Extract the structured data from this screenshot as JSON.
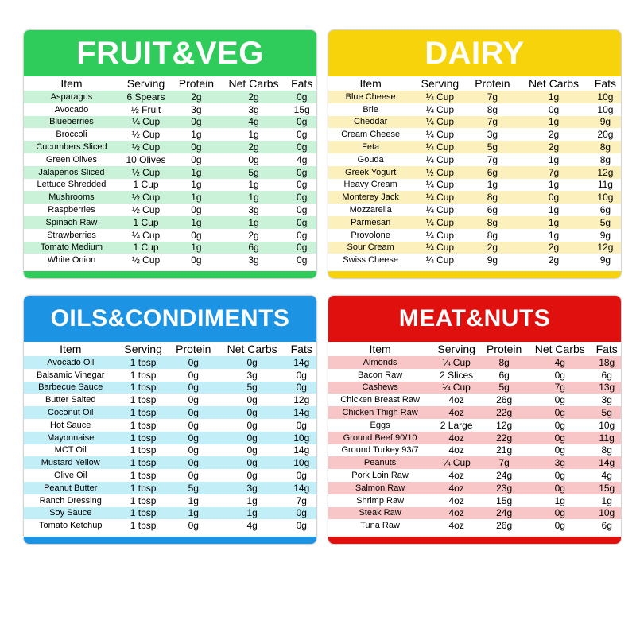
{
  "cards": [
    {
      "title": "FRUIT&VEG",
      "columns": [
        "Item",
        "Serving",
        "Protein",
        "Net Carbs",
        "Fats"
      ],
      "rows": [
        [
          "Asparagus",
          "6 Spears",
          "2g",
          "2g",
          "0g"
        ],
        [
          "Avocado",
          "½ Fruit",
          "3g",
          "3g",
          "15g"
        ],
        [
          "Blueberries",
          "¼ Cup",
          "0g",
          "4g",
          "0g"
        ],
        [
          "Broccoli",
          "½ Cup",
          "1g",
          "1g",
          "0g"
        ],
        [
          "Cucumbers Sliced",
          "½ Cup",
          "0g",
          "2g",
          "0g"
        ],
        [
          "Green Olives",
          "10 Olives",
          "0g",
          "0g",
          "4g"
        ],
        [
          "Jalapenos Sliced",
          "½ Cup",
          "1g",
          "5g",
          "0g"
        ],
        [
          "Lettuce Shredded",
          "1 Cup",
          "1g",
          "1g",
          "0g"
        ],
        [
          "Mushrooms",
          "½ Cup",
          "1g",
          "1g",
          "0g"
        ],
        [
          "Raspberries",
          "½ Cup",
          "0g",
          "3g",
          "0g"
        ],
        [
          "Spinach Raw",
          "1 Cup",
          "1g",
          "1g",
          "0g"
        ],
        [
          "Strawberries",
          "¼ Cup",
          "0g",
          "2g",
          "0g"
        ],
        [
          "Tomato Medium",
          "1 Cup",
          "1g",
          "6g",
          "0g"
        ],
        [
          "White Onion",
          "½ Cup",
          "0g",
          "3g",
          "0g"
        ]
      ]
    },
    {
      "title": "DAIRY",
      "columns": [
        "Item",
        "Serving",
        "Protein",
        "Net Carbs",
        "Fats"
      ],
      "rows": [
        [
          "Blue Cheese",
          "¼ Cup",
          "7g",
          "1g",
          "10g"
        ],
        [
          "Brie",
          "¼ Cup",
          "8g",
          "0g",
          "10g"
        ],
        [
          "Cheddar",
          "¼ Cup",
          "7g",
          "1g",
          "9g"
        ],
        [
          "Cream Cheese",
          "¼ Cup",
          "3g",
          "2g",
          "20g"
        ],
        [
          "Feta",
          "¼ Cup",
          "5g",
          "2g",
          "8g"
        ],
        [
          "Gouda",
          "¼ Cup",
          "7g",
          "1g",
          "8g"
        ],
        [
          "Greek Yogurt",
          "½ Cup",
          "6g",
          "7g",
          "12g"
        ],
        [
          "Heavy Cream",
          "¼ Cup",
          "1g",
          "1g",
          "11g"
        ],
        [
          "Monterey Jack",
          "¼ Cup",
          "8g",
          "0g",
          "10g"
        ],
        [
          "Mozzarella",
          "¼ Cup",
          "6g",
          "1g",
          "6g"
        ],
        [
          "Parmesan",
          "¼ Cup",
          "8g",
          "1g",
          "5g"
        ],
        [
          "Provolone",
          "¼ Cup",
          "8g",
          "1g",
          "9g"
        ],
        [
          "Sour Cream",
          "¼ Cup",
          "2g",
          "2g",
          "12g"
        ],
        [
          "Swiss Cheese",
          "¼ Cup",
          "9g",
          "2g",
          "9g"
        ]
      ]
    },
    {
      "title": "OILS&CONDIMENTS",
      "columns": [
        "Item",
        "Serving",
        "Protein",
        "Net Carbs",
        "Fats"
      ],
      "rows": [
        [
          "Avocado Oil",
          "1 tbsp",
          "0g",
          "0g",
          "14g"
        ],
        [
          "Balsamic Vinegar",
          "1 tbsp",
          "0g",
          "3g",
          "0g"
        ],
        [
          "Barbecue Sauce",
          "1 tbsp",
          "0g",
          "5g",
          "0g"
        ],
        [
          "Butter Salted",
          "1 tbsp",
          "0g",
          "0g",
          "12g"
        ],
        [
          "Coconut Oil",
          "1 tbsp",
          "0g",
          "0g",
          "14g"
        ],
        [
          "Hot Sauce",
          "1 tbsp",
          "0g",
          "0g",
          "0g"
        ],
        [
          "Mayonnaise",
          "1 tbsp",
          "0g",
          "0g",
          "10g"
        ],
        [
          "MCT Oil",
          "1 tbsp",
          "0g",
          "0g",
          "14g"
        ],
        [
          "Mustard Yellow",
          "1 tbsp",
          "0g",
          "0g",
          "10g"
        ],
        [
          "Olive Oil",
          "1 tbsp",
          "0g",
          "0g",
          "0g"
        ],
        [
          "Peanut Butter",
          "1 tbsp",
          "5g",
          "3g",
          "14g"
        ],
        [
          "Ranch Dressing",
          "1 tbsp",
          "1g",
          "1g",
          "7g"
        ],
        [
          "Soy Sauce",
          "1 tbsp",
          "1g",
          "1g",
          "0g"
        ],
        [
          "Tomato Ketchup",
          "1 tbsp",
          "0g",
          "4g",
          "0g"
        ]
      ]
    },
    {
      "title": "MEAT&NUTS",
      "columns": [
        "Item",
        "Serving",
        "Protein",
        "Net Carbs",
        "Fats"
      ],
      "rows": [
        [
          "Almonds",
          "¼ Cup",
          "8g",
          "4g",
          "18g"
        ],
        [
          "Bacon Raw",
          "2 Slices",
          "6g",
          "0g",
          "6g"
        ],
        [
          "Cashews",
          "¼ Cup",
          "5g",
          "7g",
          "13g"
        ],
        [
          "Chicken Breast Raw",
          "4oz",
          "26g",
          "0g",
          "3g"
        ],
        [
          "Chicken Thigh Raw",
          "4oz",
          "22g",
          "0g",
          "5g"
        ],
        [
          "Eggs",
          "2 Large",
          "12g",
          "0g",
          "10g"
        ],
        [
          "Ground Beef 90/10",
          "4oz",
          "22g",
          "0g",
          "11g"
        ],
        [
          "Ground Turkey 93/7",
          "4oz",
          "21g",
          "0g",
          "8g"
        ],
        [
          "Peanuts",
          "¼ Cup",
          "7g",
          "3g",
          "14g"
        ],
        [
          "Pork Loin Raw",
          "4oz",
          "24g",
          "0g",
          "4g"
        ],
        [
          "Salmon Raw",
          "4oz",
          "23g",
          "0g",
          "15g"
        ],
        [
          "Shrimp Raw",
          "4oz",
          "15g",
          "1g",
          "1g"
        ],
        [
          "Steak Raw",
          "4oz",
          "24g",
          "0g",
          "10g"
        ],
        [
          "Tuna Raw",
          "4oz",
          "26g",
          "0g",
          "6g"
        ]
      ]
    }
  ]
}
